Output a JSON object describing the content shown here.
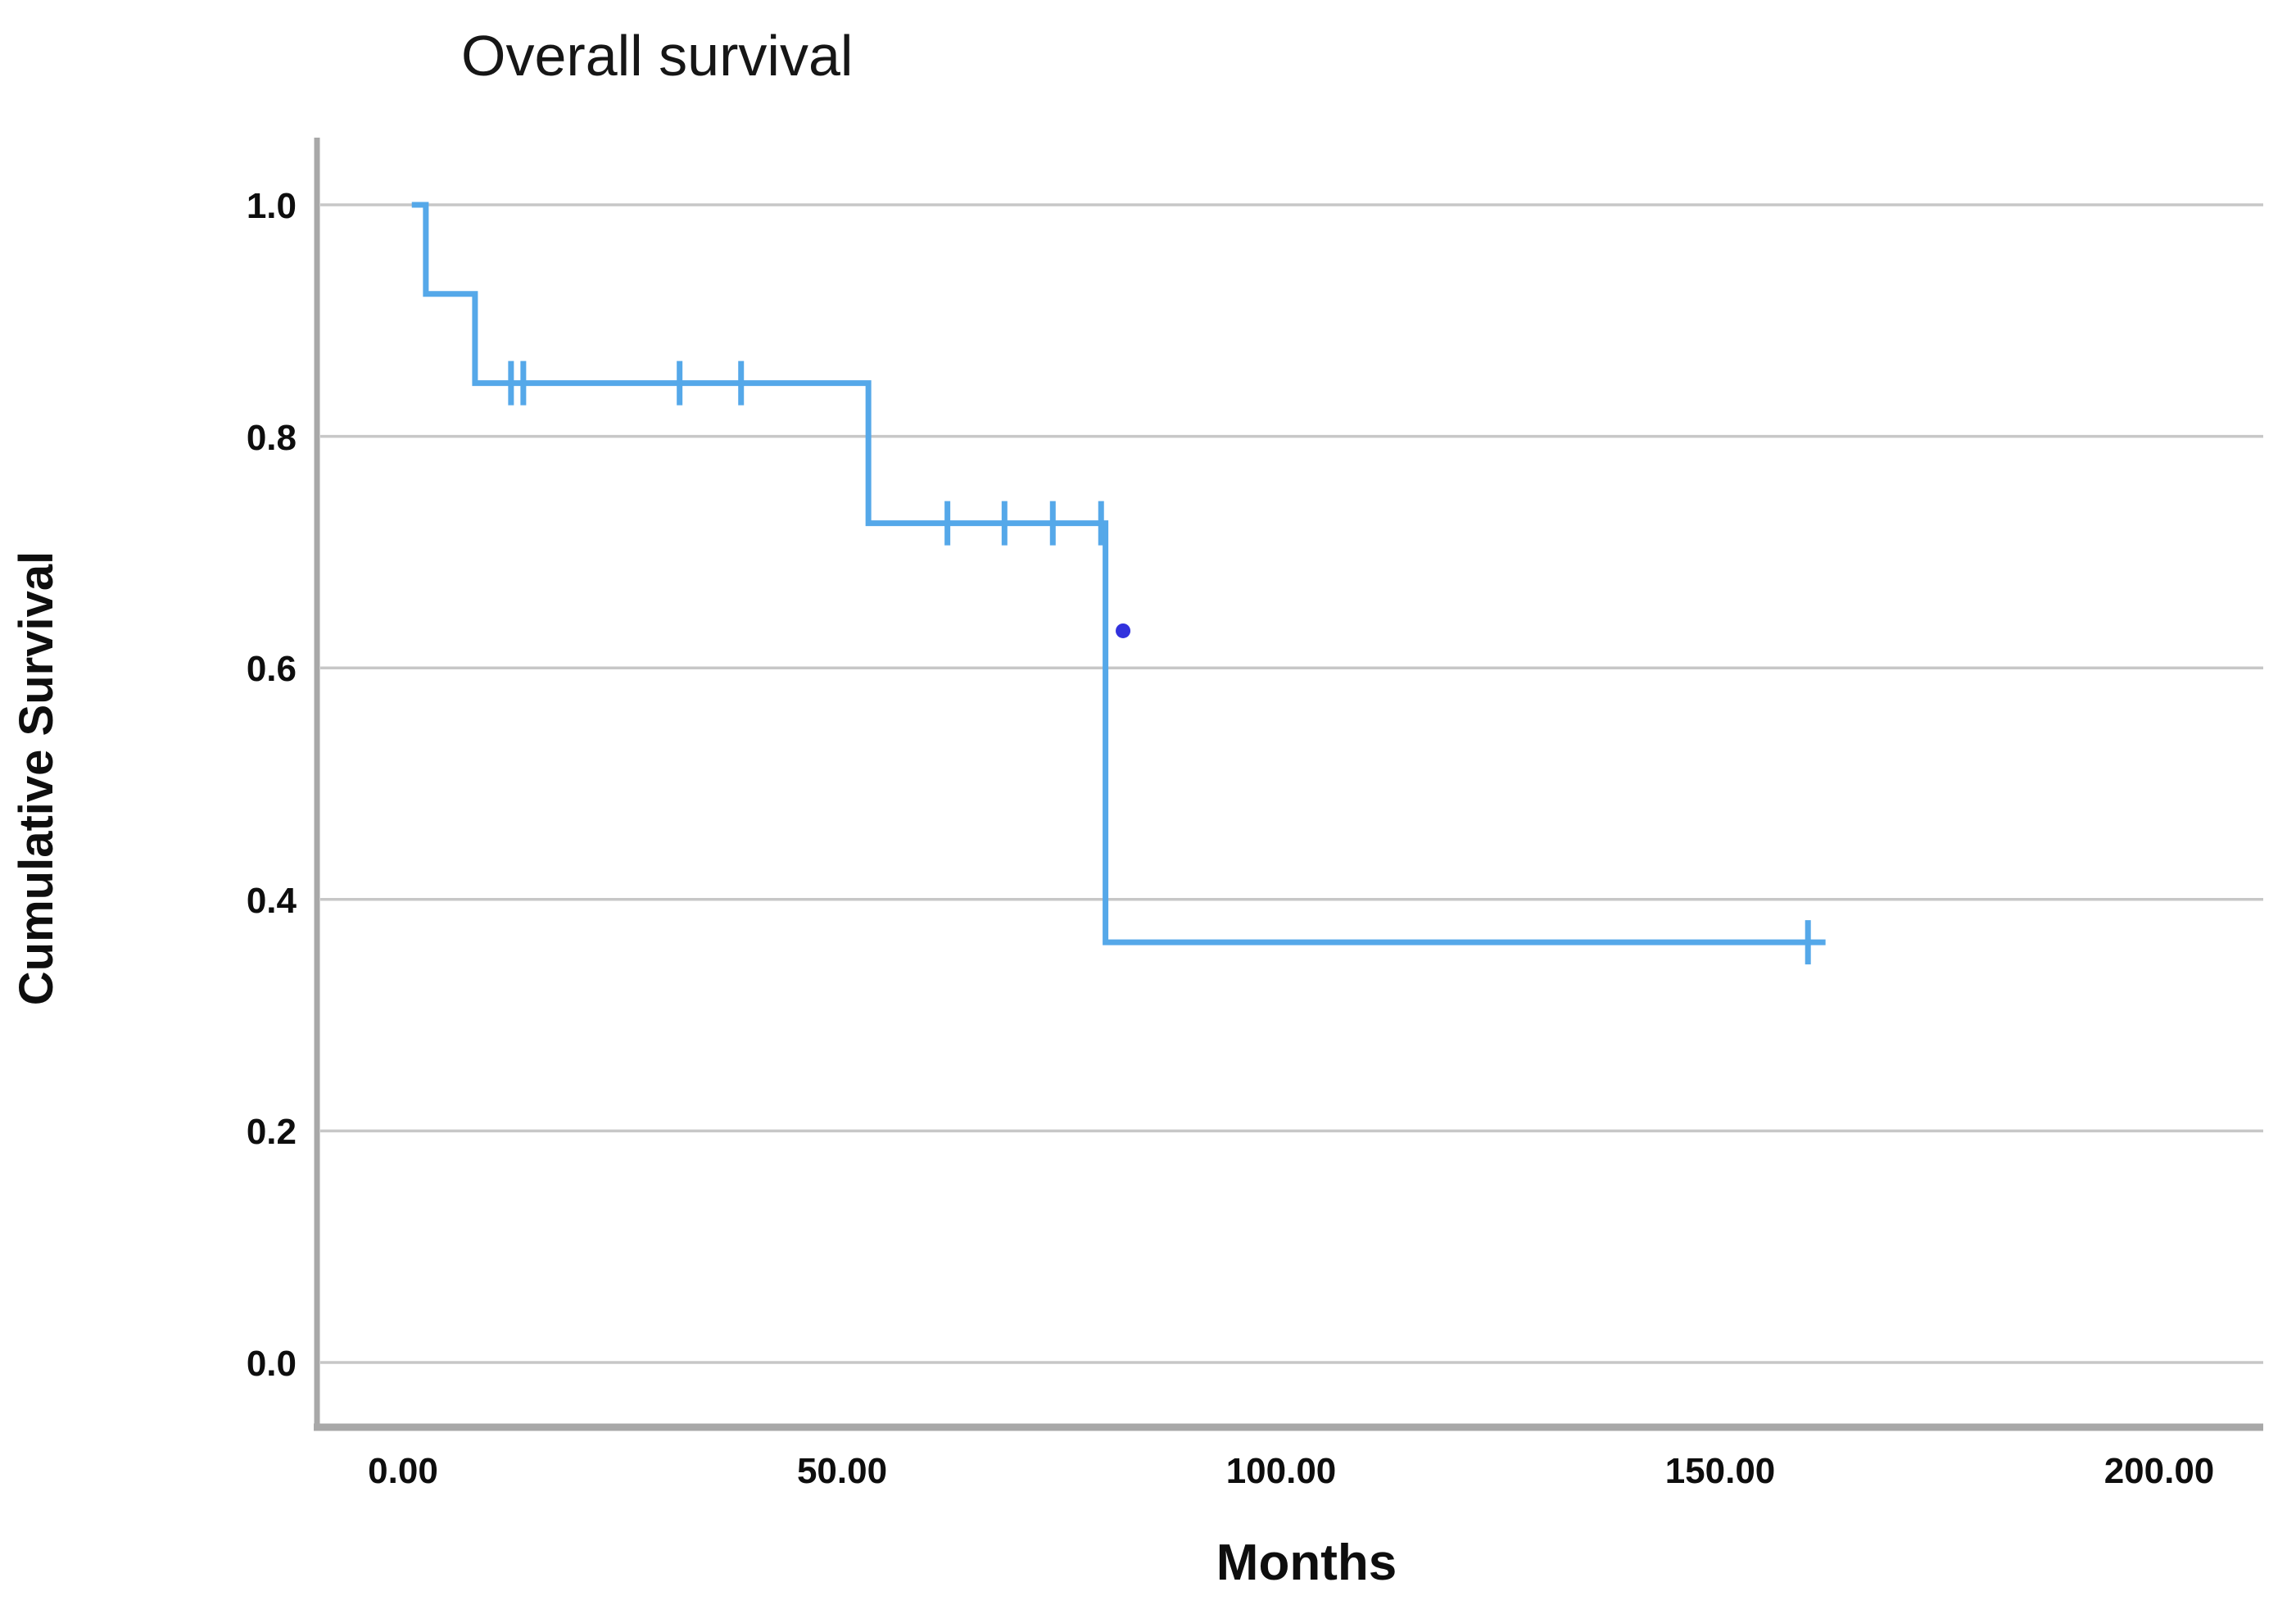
{
  "figure": {
    "title": "Overall survival",
    "x_axis_label": "Months",
    "y_axis_label": "Cumulative Survival"
  },
  "chart_data": {
    "type": "line",
    "subtype": "kaplan-meier-step",
    "title": "Overall survival",
    "xlabel": "Months",
    "ylabel": "Cumulative Survival",
    "xlim": [
      -9,
      211
    ],
    "ylim": [
      -0.06,
      1.08
    ],
    "grid": "horizontal-only",
    "legend": "none",
    "xticks": [
      {
        "value": 0,
        "label": "0.00"
      },
      {
        "value": 50,
        "label": "50.00"
      },
      {
        "value": 100,
        "label": "100.00"
      },
      {
        "value": 150,
        "label": "150.00"
      },
      {
        "value": 200,
        "label": "200.00"
      }
    ],
    "yticks": [
      {
        "value": 1.0,
        "label": "1.0"
      },
      {
        "value": 0.8,
        "label": "0.8"
      },
      {
        "value": 0.6,
        "label": "0.6"
      },
      {
        "value": 0.4,
        "label": "0.4"
      },
      {
        "value": 0.2,
        "label": "0.2"
      },
      {
        "value": 0.0,
        "label": "0.0"
      }
    ],
    "series": [
      {
        "name": "Overall survival",
        "color": "#55a8e9",
        "line_width": 7,
        "step_points": [
          [
            1.0,
            1.0
          ],
          [
            2.6,
            1.0
          ],
          [
            2.6,
            0.923
          ],
          [
            8.2,
            0.923
          ],
          [
            8.2,
            0.846
          ],
          [
            53.0,
            0.846
          ],
          [
            53.0,
            0.725
          ],
          [
            80.0,
            0.725
          ],
          [
            80.0,
            0.363
          ],
          [
            162.0,
            0.363
          ]
        ],
        "death_events": [
          {
            "time": 2.6,
            "survival": 0.923
          },
          {
            "time": 8.2,
            "survival": 0.846
          },
          {
            "time": 53.0,
            "survival": 0.725
          },
          {
            "time": 80.0,
            "survival": 0.363
          }
        ],
        "censored_marks": [
          {
            "time": 12.3,
            "survival": 0.846
          },
          {
            "time": 13.7,
            "survival": 0.846
          },
          {
            "time": 31.5,
            "survival": 0.846
          },
          {
            "time": 38.5,
            "survival": 0.846
          },
          {
            "time": 62.0,
            "survival": 0.725
          },
          {
            "time": 68.5,
            "survival": 0.725
          },
          {
            "time": 74.0,
            "survival": 0.725
          },
          {
            "time": 79.5,
            "survival": 0.725
          },
          {
            "time": 160.0,
            "survival": 0.363
          }
        ]
      }
    ],
    "outlier_point": {
      "x": 82,
      "y": 0.632,
      "color": "#3232dd",
      "radius": 9
    }
  },
  "colors": {
    "curve": "#55a8e9",
    "outlier_dot": "#3232dd",
    "gridline": "#c7c7c7",
    "axis_line": "#a8a8a8",
    "background": "#ffffff",
    "text": "#0e0e0e"
  }
}
